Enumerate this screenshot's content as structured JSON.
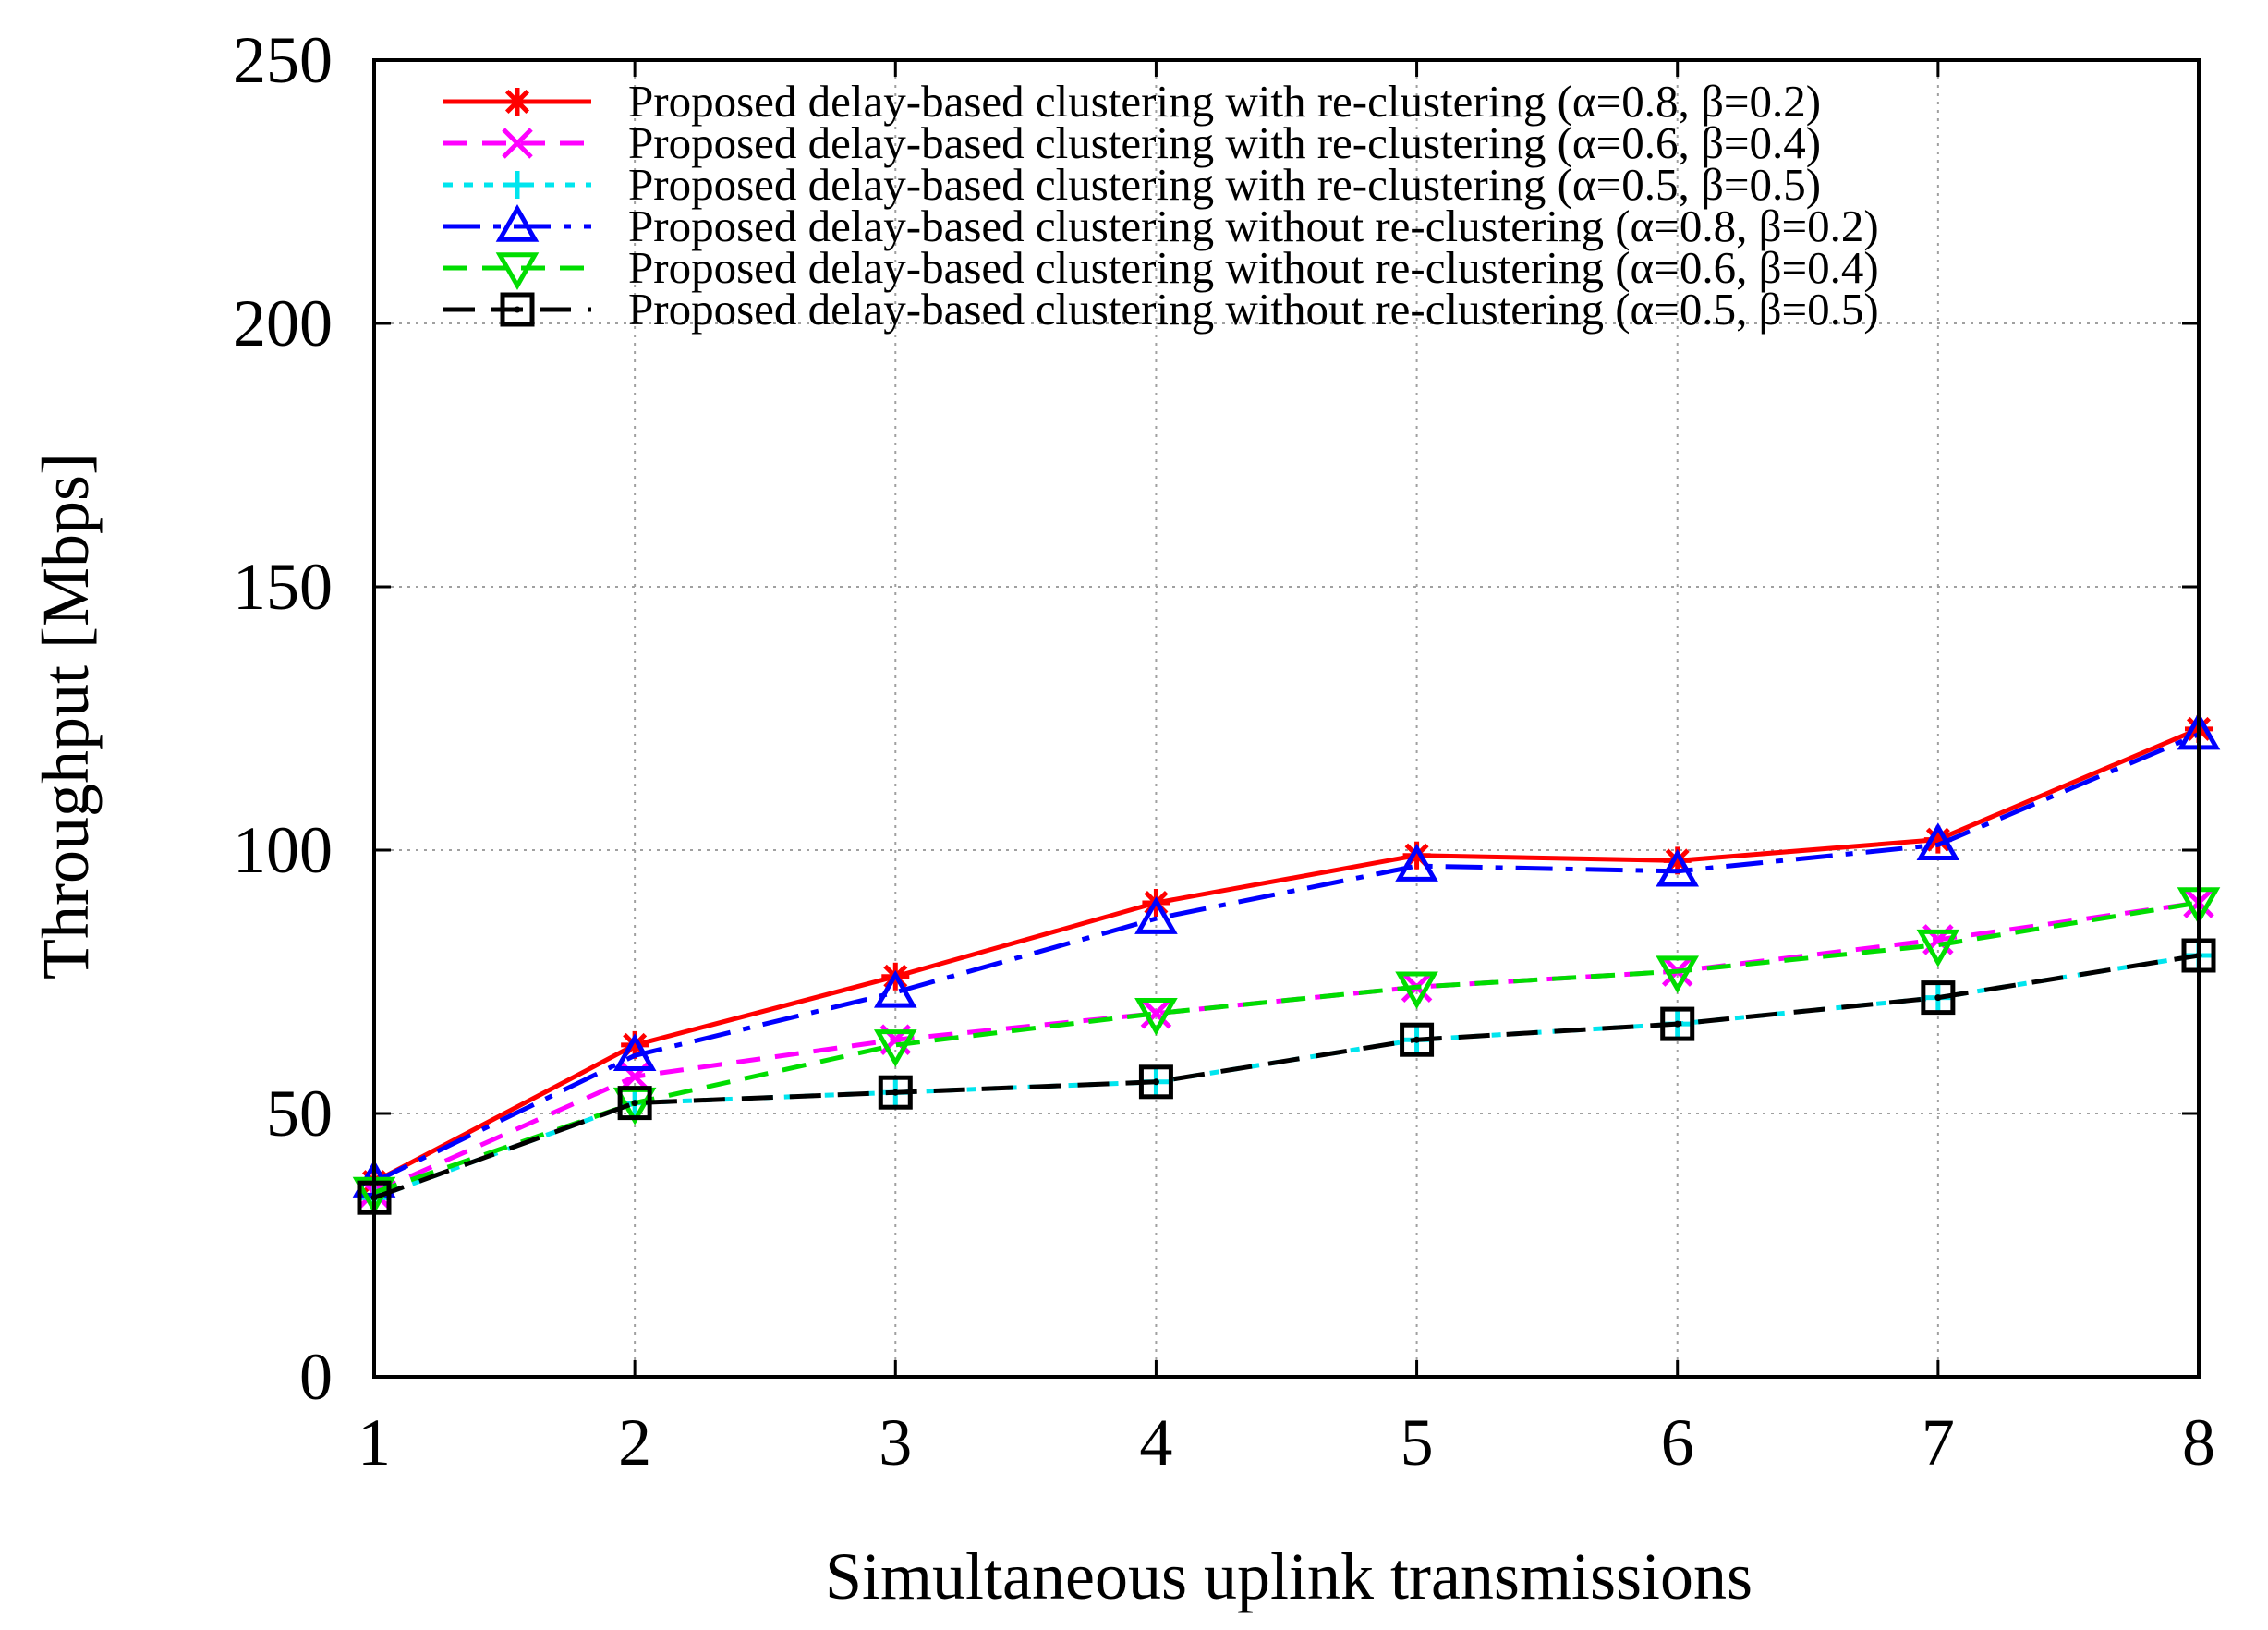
{
  "chart_data": {
    "type": "line",
    "title": "",
    "xlabel": "Simultaneous uplink transmissions",
    "ylabel": "Throughput [Mbps]",
    "x": [
      1,
      2,
      3,
      4,
      5,
      6,
      7,
      8
    ],
    "xlim": [
      1,
      8
    ],
    "ylim": [
      0,
      250
    ],
    "xticks": [
      "1",
      "2",
      "3",
      "4",
      "5",
      "6",
      "7",
      "8"
    ],
    "yticks": [
      "0",
      "50",
      "100",
      "150",
      "200",
      "250"
    ],
    "grid": true,
    "legend_position": "top",
    "series": [
      {
        "name": "Proposed delay-based clustering with re-clustering (α=0.8, β=0.2)",
        "color": "#ff0000",
        "marker": "asterisk",
        "dash": "solid",
        "values": [
          37,
          63,
          76,
          90,
          99,
          98,
          102,
          123
        ]
      },
      {
        "name": "Proposed delay-based clustering with re-clustering (α=0.6, β=0.4)",
        "color": "#ff00ff",
        "marker": "cross",
        "dash": "dashed",
        "values": [
          35,
          57,
          64,
          69,
          74,
          77,
          83,
          90
        ]
      },
      {
        "name": "Proposed delay-based clustering with re-clustering (α=0.5, β=0.5)",
        "color": "#00e5ee",
        "marker": "plus",
        "dash": "dotted",
        "values": [
          34,
          52,
          54,
          56,
          64,
          67,
          72,
          80
        ]
      },
      {
        "name": "Proposed delay-based clustering without re-clustering (α=0.8, β=0.2)",
        "color": "#0000ff",
        "marker": "triangle-up",
        "dash": "dashdot",
        "values": [
          37,
          61,
          73,
          87,
          97,
          96,
          101,
          122
        ]
      },
      {
        "name": "Proposed delay-based clustering without re-clustering (α=0.6, β=0.4)",
        "color": "#00dd00",
        "marker": "triangle-down",
        "dash": "dashed",
        "values": [
          35,
          52,
          63,
          69,
          74,
          77,
          82,
          90
        ]
      },
      {
        "name": "Proposed delay-based clustering without re-clustering (α=0.5, β=0.5)",
        "color": "#000000",
        "marker": "square-dot",
        "dash": "longdash",
        "values": [
          34,
          52,
          54,
          56,
          64,
          67,
          72,
          80
        ]
      }
    ]
  }
}
